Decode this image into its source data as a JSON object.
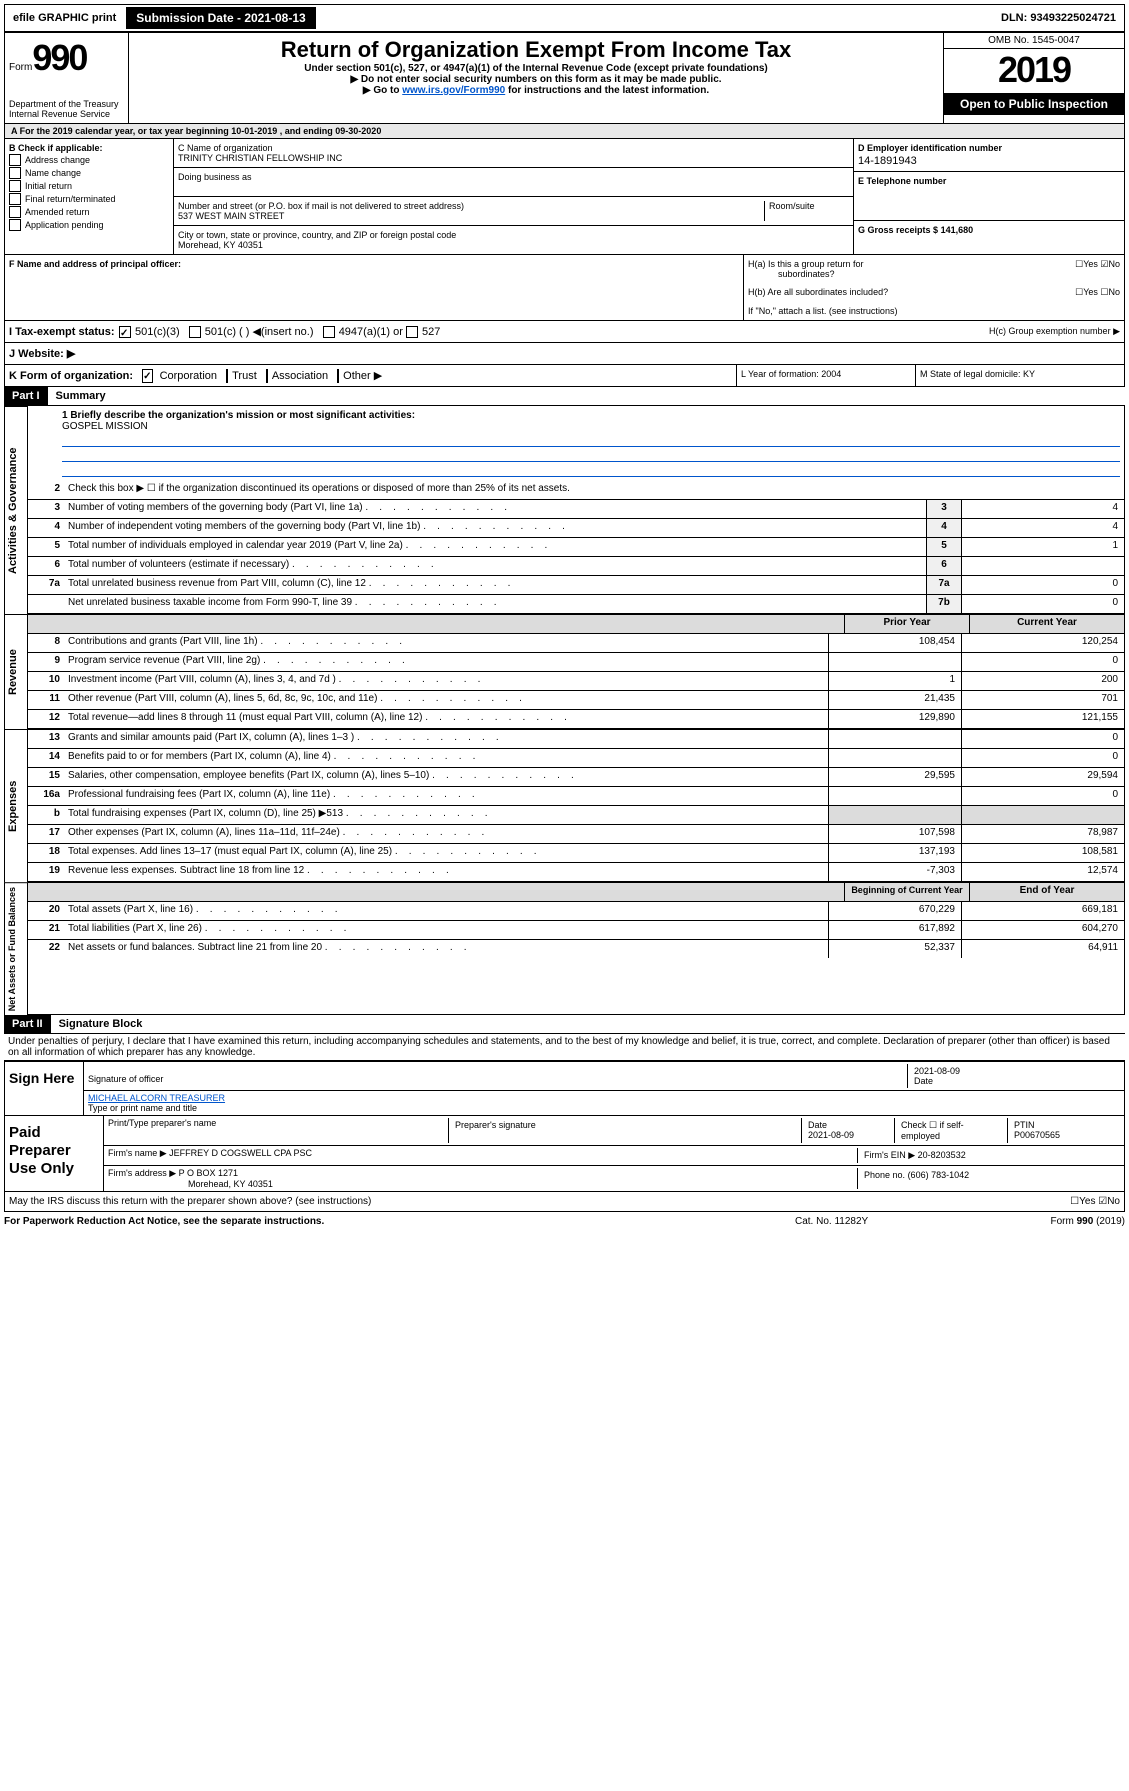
{
  "topbar": {
    "efile": "efile GRAPHIC print",
    "submission": "Submission Date - 2021-08-13",
    "dln": "DLN: 93493225024721"
  },
  "header": {
    "form_prefix": "Form",
    "form_num": "990",
    "title": "Return of Organization Exempt From Income Tax",
    "sub1": "Under section 501(c), 527, or 4947(a)(1) of the Internal Revenue Code (except private foundations)",
    "sub2": "▶ Do not enter social security numbers on this form as it may be made public.",
    "sub3_a": "▶ Go to ",
    "sub3_link": "www.irs.gov/Form990",
    "sub3_b": " for instructions and the latest information.",
    "dept": "Department of the Treasury Internal Revenue Service",
    "omb": "OMB No. 1545-0047",
    "year": "2019",
    "open": "Open to Public Inspection"
  },
  "period": "A  For the 2019 calendar year, or tax year beginning 10-01-2019     , and ending 09-30-2020",
  "section_b": {
    "label": "B Check if applicable:",
    "opts": [
      "Address change",
      "Name change",
      "Initial return",
      "Final return/terminated",
      "Amended return",
      "Application pending"
    ]
  },
  "section_c": {
    "name_label": "C Name of organization",
    "name": "TRINITY CHRISTIAN FELLOWSHIP INC",
    "dba_label": "Doing business as",
    "addr_label": "Number and street (or P.O. box if mail is not delivered to street address)",
    "room_label": "Room/suite",
    "addr": "537 WEST MAIN STREET",
    "city_label": "City or town, state or province, country, and ZIP or foreign postal code",
    "city": "Morehead, KY  40351"
  },
  "section_d": {
    "label": "D Employer identification number",
    "ein": "14-1891943",
    "e_label": "E Telephone number",
    "g_label": "G Gross receipts $",
    "g_val": "141,680"
  },
  "section_f": {
    "label": "F  Name and address of principal officer:"
  },
  "section_h": {
    "a": "H(a)  Is this a group return for",
    "a2": "subordinates?",
    "b": "H(b)  Are all subordinates included?",
    "b_note": "If \"No,\" attach a list. (see instructions)",
    "c": "H(c)  Group exemption number ▶",
    "yes": "Yes",
    "no": "No"
  },
  "section_i": {
    "label": "I   Tax-exempt status:",
    "opt1": "501(c)(3)",
    "opt2": "501(c) (   ) ◀(insert no.)",
    "opt3": "4947(a)(1) or",
    "opt4": "527"
  },
  "section_j": {
    "label": "J   Website: ▶"
  },
  "section_k": {
    "label": "K Form of organization:",
    "opts": [
      "Corporation",
      "Trust",
      "Association",
      "Other ▶"
    ],
    "l": "L Year of formation: 2004",
    "m": "M State of legal domicile: KY"
  },
  "part1": {
    "header": "Part I",
    "title": "Summary",
    "line1": "1  Briefly describe the organization's mission or most significant activities:",
    "mission": "GOSPEL MISSION",
    "line2": "Check this box ▶ ☐  if the organization discontinued its operations or disposed of more than 25% of its net assets.",
    "rows_gov": [
      {
        "n": "3",
        "d": "Number of voting members of the governing body (Part VI, line 1a)",
        "box": "3",
        "v": "4"
      },
      {
        "n": "4",
        "d": "Number of independent voting members of the governing body (Part VI, line 1b)",
        "box": "4",
        "v": "4"
      },
      {
        "n": "5",
        "d": "Total number of individuals employed in calendar year 2019 (Part V, line 2a)",
        "box": "5",
        "v": "1"
      },
      {
        "n": "6",
        "d": "Total number of volunteers (estimate if necessary)",
        "box": "6",
        "v": ""
      },
      {
        "n": "7a",
        "d": "Total unrelated business revenue from Part VIII, column (C), line 12",
        "box": "7a",
        "v": "0"
      },
      {
        "n": "",
        "d": "Net unrelated business taxable income from Form 990-T, line 39",
        "box": "7b",
        "v": "0"
      }
    ],
    "h_prior": "Prior Year",
    "h_curr": "Current Year",
    "rows_rev": [
      {
        "n": "8",
        "d": "Contributions and grants (Part VIII, line 1h)",
        "p": "108,454",
        "c": "120,254"
      },
      {
        "n": "9",
        "d": "Program service revenue (Part VIII, line 2g)",
        "p": "",
        "c": "0"
      },
      {
        "n": "10",
        "d": "Investment income (Part VIII, column (A), lines 3, 4, and 7d )",
        "p": "1",
        "c": "200"
      },
      {
        "n": "11",
        "d": "Other revenue (Part VIII, column (A), lines 5, 6d, 8c, 9c, 10c, and 11e)",
        "p": "21,435",
        "c": "701"
      },
      {
        "n": "12",
        "d": "Total revenue—add lines 8 through 11 (must equal Part VIII, column (A), line 12)",
        "p": "129,890",
        "c": "121,155"
      }
    ],
    "rows_exp": [
      {
        "n": "13",
        "d": "Grants and similar amounts paid (Part IX, column (A), lines 1–3 )",
        "p": "",
        "c": "0"
      },
      {
        "n": "14",
        "d": "Benefits paid to or for members (Part IX, column (A), line 4)",
        "p": "",
        "c": "0"
      },
      {
        "n": "15",
        "d": "Salaries, other compensation, employee benefits (Part IX, column (A), lines 5–10)",
        "p": "29,595",
        "c": "29,594"
      },
      {
        "n": "16a",
        "d": "Professional fundraising fees (Part IX, column (A), line 11e)",
        "p": "",
        "c": "0"
      },
      {
        "n": "b",
        "d": "Total fundraising expenses (Part IX, column (D), line 25) ▶513",
        "p": "—shade—",
        "c": "—shade—"
      },
      {
        "n": "17",
        "d": "Other expenses (Part IX, column (A), lines 11a–11d, 11f–24e)",
        "p": "107,598",
        "c": "78,987"
      },
      {
        "n": "18",
        "d": "Total expenses. Add lines 13–17 (must equal Part IX, column (A), line 25)",
        "p": "137,193",
        "c": "108,581"
      },
      {
        "n": "19",
        "d": "Revenue less expenses. Subtract line 18 from line 12",
        "p": "-7,303",
        "c": "12,574"
      }
    ],
    "h_begin": "Beginning of Current Year",
    "h_end": "End of Year",
    "rows_net": [
      {
        "n": "20",
        "d": "Total assets (Part X, line 16)",
        "p": "670,229",
        "c": "669,181"
      },
      {
        "n": "21",
        "d": "Total liabilities (Part X, line 26)",
        "p": "617,892",
        "c": "604,270"
      },
      {
        "n": "22",
        "d": "Net assets or fund balances. Subtract line 21 from line 20",
        "p": "52,337",
        "c": "64,911"
      }
    ],
    "side_gov": "Activities & Governance",
    "side_rev": "Revenue",
    "side_exp": "Expenses",
    "side_net": "Net Assets or Fund Balances"
  },
  "part2": {
    "header": "Part II",
    "title": "Signature Block",
    "decl": "Under penalties of perjury, I declare that I have examined this return, including accompanying schedules and statements, and to the best of my knowledge and belief, it is true, correct, and complete. Declaration of preparer (other than officer) is based on all information of which preparer has any knowledge.",
    "sign_label": "Sign Here",
    "sig_date": "2021-08-09",
    "sig_date_label": "Date",
    "sig_officer_label": "Signature of officer",
    "officer_name": "MICHAEL ALCORN  TREASURER",
    "officer_sub": "Type or print name and title",
    "paid_label": "Paid Preparer Use Only",
    "prep_name_label": "Print/Type preparer's name",
    "prep_sig_label": "Preparer's signature",
    "prep_date_label": "Date",
    "prep_date": "2021-08-09",
    "check_label": "Check ☐ if self-employed",
    "ptin_label": "PTIN",
    "ptin": "P00670565",
    "firm_name_label": "Firm's name      ▶",
    "firm_name": "JEFFREY D COGSWELL CPA PSC",
    "firm_ein_label": "Firm's EIN ▶",
    "firm_ein": "20-8203532",
    "firm_addr_label": "Firm's address ▶",
    "firm_addr1": "P O BOX 1271",
    "firm_addr2": "Morehead, KY  40351",
    "phone_label": "Phone no.",
    "phone": "(606) 783-1042",
    "discuss": "May the IRS discuss this return with the preparer shown above? (see instructions)"
  },
  "footer": {
    "left": "For Paperwork Reduction Act Notice, see the separate instructions.",
    "mid": "Cat. No. 11282Y",
    "right_a": "Form ",
    "right_b": "990",
    "right_c": " (2019)"
  }
}
